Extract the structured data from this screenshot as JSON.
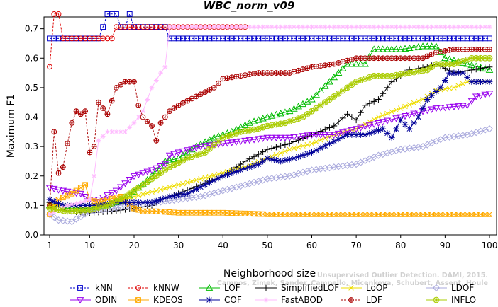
{
  "chart_data": {
    "type": "line",
    "title": "WBC_norm_v09",
    "xlabel": "Neighborhood size",
    "ylabel": "Maximum F1",
    "xlim": [
      1,
      100
    ],
    "ylim": [
      0.0,
      0.74
    ],
    "xticks": [
      1,
      10,
      20,
      30,
      40,
      50,
      60,
      70,
      80,
      90,
      100
    ],
    "yticks": [
      0.0,
      0.1,
      0.2,
      0.3,
      0.4,
      0.5,
      0.6,
      0.7
    ],
    "ytick_labels": [
      "0.0",
      "0.1",
      "0.2",
      "0.3",
      "0.4",
      "0.5",
      "0.6",
      "0.7"
    ],
    "legend_position": "bottom",
    "credit_line1": "Unsupervised Outlier Detection. DAMI, 2015.",
    "credit_line2": "Campos, Zimek, Sander, Campello, Micenkova, Schubert, Assent, Houle",
    "series": [
      {
        "name": "kNN",
        "color": "#0000cc",
        "marker": "square",
        "dashed": true,
        "points": [
          [
            1,
            0.667
          ],
          [
            12,
            0.667
          ],
          [
            13,
            0.706
          ],
          [
            14,
            0.75
          ],
          [
            17,
            0.75
          ],
          [
            17,
            0.706
          ],
          [
            19,
            0.706
          ],
          [
            19,
            0.75
          ],
          [
            20,
            0.75
          ],
          [
            20,
            0.706
          ],
          [
            27,
            0.706
          ],
          [
            28,
            0.667
          ],
          [
            100,
            0.667
          ]
        ]
      },
      {
        "name": "kNNW",
        "color": "#dd0000",
        "marker": "circle",
        "dashed": true,
        "points": [
          [
            1,
            0.571
          ],
          [
            2,
            0.75
          ],
          [
            3,
            0.75
          ],
          [
            4,
            0.667
          ],
          [
            14,
            0.667
          ],
          [
            15,
            0.667
          ],
          [
            16,
            0.706
          ],
          [
            45,
            0.706
          ]
        ]
      },
      {
        "name": "LOF",
        "color": "#00bb00",
        "marker": "triangle",
        "dashed": false,
        "points": [
          [
            1,
            0.1
          ],
          [
            5,
            0.09
          ],
          [
            10,
            0.09
          ],
          [
            14,
            0.1
          ],
          [
            18,
            0.12
          ],
          [
            21,
            0.16
          ],
          [
            24,
            0.2
          ],
          [
            27,
            0.25
          ],
          [
            30,
            0.26
          ],
          [
            34,
            0.3
          ],
          [
            38,
            0.33
          ],
          [
            42,
            0.35
          ],
          [
            46,
            0.38
          ],
          [
            50,
            0.4
          ],
          [
            55,
            0.42
          ],
          [
            60,
            0.46
          ],
          [
            64,
            0.52
          ],
          [
            68,
            0.58
          ],
          [
            72,
            0.58
          ],
          [
            74,
            0.63
          ],
          [
            80,
            0.63
          ],
          [
            85,
            0.64
          ],
          [
            88,
            0.64
          ],
          [
            90,
            0.6
          ],
          [
            95,
            0.58
          ],
          [
            100,
            0.56
          ]
        ]
      },
      {
        "name": "SimplifiedLOF",
        "color": "#000000",
        "marker": "plus",
        "dashed": false,
        "points": [
          [
            1,
            0.11
          ],
          [
            5,
            0.08
          ],
          [
            10,
            0.075
          ],
          [
            15,
            0.08
          ],
          [
            20,
            0.09
          ],
          [
            24,
            0.1
          ],
          [
            26,
            0.12
          ],
          [
            30,
            0.14
          ],
          [
            35,
            0.17
          ],
          [
            40,
            0.2
          ],
          [
            45,
            0.25
          ],
          [
            50,
            0.29
          ],
          [
            55,
            0.31
          ],
          [
            60,
            0.34
          ],
          [
            65,
            0.37
          ],
          [
            68,
            0.41
          ],
          [
            70,
            0.39
          ],
          [
            72,
            0.44
          ],
          [
            75,
            0.46
          ],
          [
            78,
            0.52
          ],
          [
            80,
            0.54
          ],
          [
            82,
            0.56
          ],
          [
            86,
            0.57
          ],
          [
            88,
            0.58
          ],
          [
            92,
            0.55
          ],
          [
            96,
            0.56
          ],
          [
            100,
            0.57
          ]
        ]
      },
      {
        "name": "LoOP",
        "color": "#eedd00",
        "marker": "cross",
        "dashed": false,
        "points": [
          [
            1,
            0.1
          ],
          [
            5,
            0.1
          ],
          [
            10,
            0.1
          ],
          [
            15,
            0.11
          ],
          [
            20,
            0.13
          ],
          [
            25,
            0.15
          ],
          [
            30,
            0.17
          ],
          [
            35,
            0.19
          ],
          [
            40,
            0.21
          ],
          [
            45,
            0.23
          ],
          [
            50,
            0.26
          ],
          [
            55,
            0.29
          ],
          [
            60,
            0.31
          ],
          [
            65,
            0.34
          ],
          [
            70,
            0.36
          ],
          [
            75,
            0.4
          ],
          [
            80,
            0.43
          ],
          [
            85,
            0.46
          ],
          [
            88,
            0.49
          ],
          [
            92,
            0.5
          ],
          [
            95,
            0.52
          ],
          [
            100,
            0.52
          ]
        ]
      },
      {
        "name": "LDOF",
        "color": "#aaaadd",
        "marker": "diamond",
        "dashed": false,
        "points": [
          [
            1,
            0.07
          ],
          [
            3,
            0.05
          ],
          [
            6,
            0.045
          ],
          [
            10,
            0.08
          ],
          [
            15,
            0.09
          ],
          [
            20,
            0.1
          ],
          [
            25,
            0.11
          ],
          [
            30,
            0.12
          ],
          [
            35,
            0.13
          ],
          [
            40,
            0.15
          ],
          [
            45,
            0.17
          ],
          [
            50,
            0.19
          ],
          [
            55,
            0.2
          ],
          [
            60,
            0.22
          ],
          [
            65,
            0.23
          ],
          [
            70,
            0.24
          ],
          [
            75,
            0.27
          ],
          [
            80,
            0.29
          ],
          [
            85,
            0.3
          ],
          [
            90,
            0.33
          ],
          [
            95,
            0.34
          ],
          [
            100,
            0.36
          ]
        ]
      },
      {
        "name": "ODIN",
        "color": "#9900ee",
        "marker": "triangle-down",
        "dashed": false,
        "points": [
          [
            1,
            0.16
          ],
          [
            4,
            0.15
          ],
          [
            8,
            0.14
          ],
          [
            10,
            0.12
          ],
          [
            12,
            0.12
          ],
          [
            16,
            0.15
          ],
          [
            20,
            0.2
          ],
          [
            24,
            0.22
          ],
          [
            27,
            0.24
          ],
          [
            28,
            0.27
          ],
          [
            30,
            0.28
          ],
          [
            35,
            0.3
          ],
          [
            40,
            0.31
          ],
          [
            45,
            0.32
          ],
          [
            50,
            0.33
          ],
          [
            55,
            0.33
          ],
          [
            60,
            0.34
          ],
          [
            65,
            0.34
          ],
          [
            70,
            0.36
          ],
          [
            75,
            0.38
          ],
          [
            80,
            0.4
          ],
          [
            85,
            0.42
          ],
          [
            88,
            0.43
          ],
          [
            95,
            0.44
          ],
          [
            97,
            0.47
          ],
          [
            100,
            0.48
          ]
        ]
      },
      {
        "name": "KDEOS",
        "color": "#ffaa00",
        "marker": "square-x",
        "dashed": false,
        "points": [
          [
            1,
            0.07
          ],
          [
            3,
            0.12
          ],
          [
            6,
            0.14
          ],
          [
            9,
            0.17
          ],
          [
            10,
            0.12
          ],
          [
            12,
            0.11
          ],
          [
            14,
            0.12
          ],
          [
            17,
            0.13
          ],
          [
            20,
            0.09
          ],
          [
            22,
            0.08
          ],
          [
            25,
            0.08
          ],
          [
            30,
            0.075
          ],
          [
            40,
            0.075
          ],
          [
            50,
            0.07
          ],
          [
            60,
            0.07
          ],
          [
            70,
            0.07
          ],
          [
            80,
            0.07
          ],
          [
            90,
            0.07
          ],
          [
            100,
            0.07
          ]
        ]
      },
      {
        "name": "COF",
        "color": "#000099",
        "marker": "star",
        "dashed": false,
        "points": [
          [
            1,
            0.12
          ],
          [
            4,
            0.1
          ],
          [
            8,
            0.1
          ],
          [
            12,
            0.1
          ],
          [
            16,
            0.11
          ],
          [
            20,
            0.11
          ],
          [
            24,
            0.11
          ],
          [
            28,
            0.13
          ],
          [
            32,
            0.14
          ],
          [
            36,
            0.17
          ],
          [
            40,
            0.2
          ],
          [
            44,
            0.22
          ],
          [
            48,
            0.24
          ],
          [
            50,
            0.26
          ],
          [
            53,
            0.25
          ],
          [
            56,
            0.26
          ],
          [
            60,
            0.28
          ],
          [
            64,
            0.31
          ],
          [
            68,
            0.34
          ],
          [
            72,
            0.34
          ],
          [
            76,
            0.36
          ],
          [
            78,
            0.33
          ],
          [
            80,
            0.39
          ],
          [
            82,
            0.36
          ],
          [
            84,
            0.4
          ],
          [
            86,
            0.46
          ],
          [
            89,
            0.5
          ],
          [
            91,
            0.55
          ],
          [
            94,
            0.55
          ],
          [
            96,
            0.52
          ],
          [
            100,
            0.52
          ]
        ]
      },
      {
        "name": "FastABOD",
        "color": "#ffbbff",
        "marker": "asterisk",
        "dashed": false,
        "points": [
          [
            1,
            0.07
          ],
          [
            5,
            0.1
          ],
          [
            8,
            0.11
          ],
          [
            10,
            0.12
          ],
          [
            11,
            0.2
          ],
          [
            12,
            0.32
          ],
          [
            14,
            0.35
          ],
          [
            18,
            0.35
          ],
          [
            20,
            0.38
          ],
          [
            22,
            0.42
          ],
          [
            24,
            0.5
          ],
          [
            26,
            0.55
          ],
          [
            27,
            0.57
          ],
          [
            28,
            0.706
          ],
          [
            100,
            0.706
          ]
        ]
      },
      {
        "name": "LDF",
        "color": "#aa0000",
        "marker": "circle-plus",
        "dashed": true,
        "points": [
          [
            1,
            0.1
          ],
          [
            2,
            0.35
          ],
          [
            3,
            0.21
          ],
          [
            4,
            0.23
          ],
          [
            5,
            0.31
          ],
          [
            6,
            0.38
          ],
          [
            7,
            0.42
          ],
          [
            8,
            0.41
          ],
          [
            9,
            0.42
          ],
          [
            10,
            0.28
          ],
          [
            11,
            0.3
          ],
          [
            12,
            0.45
          ],
          [
            14,
            0.41
          ],
          [
            16,
            0.5
          ],
          [
            18,
            0.52
          ],
          [
            20,
            0.52
          ],
          [
            21,
            0.44
          ],
          [
            22,
            0.4
          ],
          [
            24,
            0.37
          ],
          [
            25,
            0.32
          ],
          [
            26,
            0.38
          ],
          [
            28,
            0.42
          ],
          [
            30,
            0.44
          ],
          [
            34,
            0.47
          ],
          [
            38,
            0.5
          ],
          [
            40,
            0.53
          ],
          [
            44,
            0.54
          ],
          [
            48,
            0.55
          ],
          [
            55,
            0.55
          ],
          [
            60,
            0.57
          ],
          [
            65,
            0.58
          ],
          [
            70,
            0.6
          ],
          [
            75,
            0.6
          ],
          [
            80,
            0.6
          ],
          [
            85,
            0.6
          ],
          [
            88,
            0.62
          ],
          [
            92,
            0.63
          ],
          [
            95,
            0.63
          ],
          [
            100,
            0.63
          ]
        ]
      },
      {
        "name": "INFLO",
        "color": "#aacc00",
        "marker": "circle-star",
        "dashed": false,
        "points": [
          [
            1,
            0.09
          ],
          [
            5,
            0.08
          ],
          [
            10,
            0.085
          ],
          [
            14,
            0.1
          ],
          [
            18,
            0.13
          ],
          [
            22,
            0.17
          ],
          [
            25,
            0.2
          ],
          [
            28,
            0.23
          ],
          [
            32,
            0.26
          ],
          [
            36,
            0.28
          ],
          [
            40,
            0.33
          ],
          [
            44,
            0.35
          ],
          [
            48,
            0.36
          ],
          [
            50,
            0.37
          ],
          [
            54,
            0.38
          ],
          [
            58,
            0.4
          ],
          [
            62,
            0.44
          ],
          [
            66,
            0.48
          ],
          [
            70,
            0.52
          ],
          [
            74,
            0.54
          ],
          [
            78,
            0.54
          ],
          [
            82,
            0.55
          ],
          [
            86,
            0.56
          ],
          [
            88,
            0.58
          ],
          [
            92,
            0.58
          ],
          [
            96,
            0.6
          ],
          [
            100,
            0.6
          ]
        ]
      }
    ]
  }
}
